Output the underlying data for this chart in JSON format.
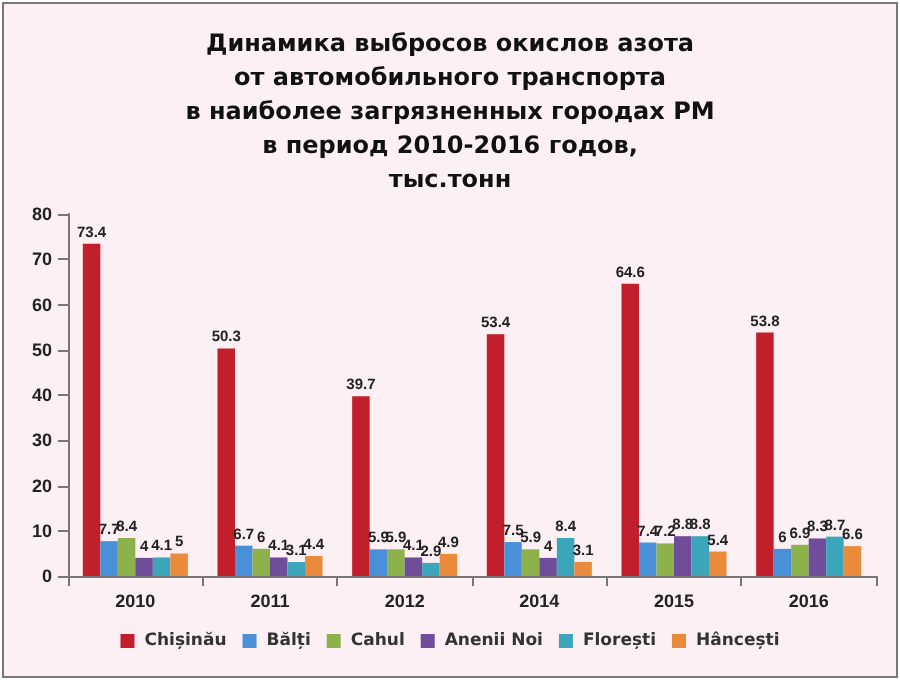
{
  "chart_data": {
    "type": "bar",
    "title": "Динамика выбросов окислов азота\nот автомобильного транспорта\nв наиболее загрязненных городах РМ\nв период 2010-2016 годов,\nтыс.тонн",
    "categories": [
      "2010",
      "2011",
      "2012",
      "2014",
      "2015",
      "2016"
    ],
    "series": [
      {
        "name": "Chișinău",
        "color": "#c01f2b",
        "values": [
          73.4,
          50.3,
          39.7,
          53.4,
          64.6,
          53.8
        ]
      },
      {
        "name": "Bălți",
        "color": "#4a90d9",
        "values": [
          7.7,
          6.7,
          5.9,
          7.5,
          7.4,
          6
        ]
      },
      {
        "name": "Cahul",
        "color": "#8db24c",
        "values": [
          8.4,
          6,
          5.9,
          5.9,
          7.2,
          6.9
        ]
      },
      {
        "name": "Anenii Noi",
        "color": "#6f4d9b",
        "values": [
          4,
          4.1,
          4.1,
          4,
          8.8,
          8.3
        ]
      },
      {
        "name": "Florești",
        "color": "#3ba5b9",
        "values": [
          4.1,
          3.1,
          2.9,
          8.4,
          8.8,
          8.7
        ]
      },
      {
        "name": "Hâncești",
        "color": "#ea8a3b",
        "values": [
          5,
          4.4,
          4.9,
          3.1,
          5.4,
          6.6
        ]
      }
    ],
    "ylim": [
      0,
      80
    ],
    "yticks": [
      0,
      10,
      20,
      30,
      40,
      50,
      60,
      70,
      80
    ],
    "grid": false,
    "legend": "bottom",
    "data_labels": true
  }
}
